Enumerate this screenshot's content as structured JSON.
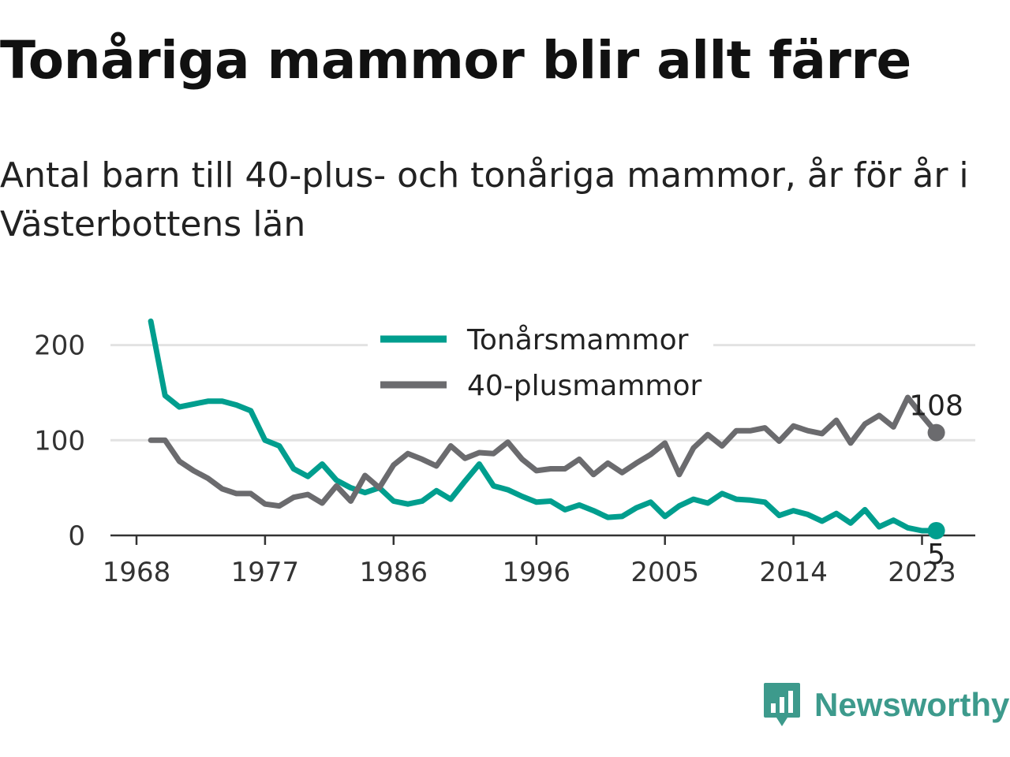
{
  "title": "Tonåriga mammor blir allt färre",
  "subtitle": "Antal barn till 40-plus- och tonåriga mammor, år för år i Västerbottens län",
  "brand": {
    "name": "Newsworthy",
    "icon": "newsworthy-logo-icon",
    "color": "#3d9a8c"
  },
  "chart_data": {
    "type": "line",
    "x": [
      1969,
      1970,
      1971,
      1972,
      1973,
      1974,
      1975,
      1976,
      1977,
      1978,
      1979,
      1980,
      1981,
      1982,
      1983,
      1984,
      1985,
      1986,
      1987,
      1988,
      1989,
      1990,
      1991,
      1992,
      1993,
      1994,
      1995,
      1996,
      1997,
      1998,
      1999,
      2000,
      2001,
      2002,
      2003,
      2004,
      2005,
      2006,
      2007,
      2008,
      2009,
      2010,
      2011,
      2012,
      2013,
      2014,
      2015,
      2016,
      2017,
      2018,
      2019,
      2020,
      2021,
      2022,
      2023,
      2024
    ],
    "x_ticks": [
      "1968",
      "1977",
      "1986",
      "1996",
      "2005",
      "2014",
      "2023"
    ],
    "y_ticks": [
      "0",
      "100",
      "200"
    ],
    "ylim": [
      0,
      225
    ],
    "grid": true,
    "legend_placement": "top-center",
    "series": [
      {
        "name": "Tonårsmammor",
        "color": "#009e8e",
        "end_label": "5",
        "values": [
          225,
          147,
          135,
          138,
          141,
          141,
          137,
          131,
          100,
          94,
          70,
          62,
          75,
          58,
          50,
          45,
          50,
          36,
          33,
          36,
          47,
          38,
          57,
          75,
          52,
          48,
          41,
          35,
          36,
          27,
          32,
          26,
          19,
          20,
          29,
          35,
          20,
          31,
          38,
          34,
          44,
          38,
          37,
          35,
          21,
          26,
          22,
          15,
          23,
          13,
          27,
          9,
          16,
          8,
          5,
          5
        ]
      },
      {
        "name": "40-plusmammor",
        "color": "#6b6b6e",
        "end_label": "108",
        "values": [
          100,
          100,
          78,
          68,
          60,
          49,
          44,
          44,
          33,
          31,
          40,
          43,
          34,
          52,
          36,
          63,
          50,
          74,
          86,
          80,
          73,
          94,
          81,
          87,
          86,
          98,
          80,
          68,
          70,
          70,
          80,
          64,
          76,
          66,
          76,
          85,
          97,
          64,
          92,
          106,
          94,
          110,
          110,
          113,
          99,
          115,
          110,
          107,
          121,
          97,
          117,
          126,
          114,
          145,
          126,
          108
        ]
      }
    ]
  }
}
